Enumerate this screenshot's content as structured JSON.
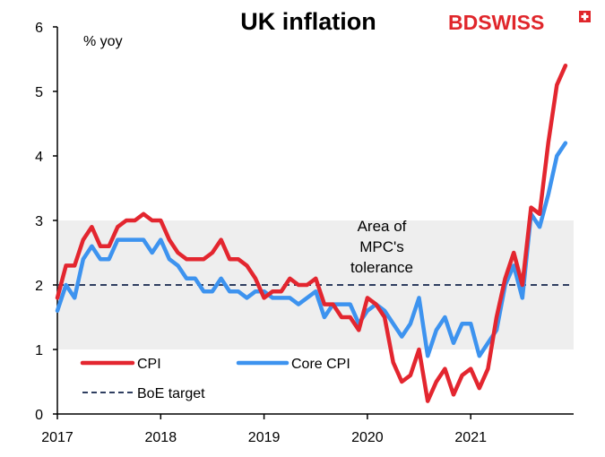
{
  "logo": {
    "text": "BDSWISS"
  },
  "chart_data": {
    "type": "line",
    "title": "UK inflation",
    "ylabel": "% yoy",
    "xlabel": "",
    "ylim": [
      0,
      6
    ],
    "yticks": [
      "0",
      "1",
      "2",
      "3",
      "4",
      "5",
      "6"
    ],
    "xticks": [
      "2017",
      "2018",
      "2019",
      "2020",
      "2021"
    ],
    "band": {
      "from": 1,
      "to": 3,
      "label_lines": [
        "Area of",
        "MPC's",
        "tolerance"
      ]
    },
    "target": {
      "name": "BoE target",
      "value": 2
    },
    "colors": {
      "cpi": "#e3262f",
      "core": "#3d93ef",
      "target": "#2f3e60",
      "band": "#eeeeee"
    },
    "start": "2017-01",
    "series": [
      {
        "name": "CPI",
        "values": [
          1.8,
          2.3,
          2.3,
          2.7,
          2.9,
          2.6,
          2.6,
          2.9,
          3.0,
          3.0,
          3.1,
          3.0,
          3.0,
          2.7,
          2.5,
          2.4,
          2.4,
          2.4,
          2.5,
          2.7,
          2.4,
          2.4,
          2.3,
          2.1,
          1.8,
          1.9,
          1.9,
          2.1,
          2.0,
          2.0,
          2.1,
          1.7,
          1.7,
          1.5,
          1.5,
          1.3,
          1.8,
          1.7,
          1.5,
          0.8,
          0.5,
          0.6,
          1.0,
          0.2,
          0.5,
          0.7,
          0.3,
          0.6,
          0.7,
          0.4,
          0.7,
          1.5,
          2.1,
          2.5,
          2.0,
          3.2,
          3.1,
          4.2,
          5.1,
          5.4
        ]
      },
      {
        "name": "Core CPI",
        "values": [
          1.6,
          2.0,
          1.8,
          2.4,
          2.6,
          2.4,
          2.4,
          2.7,
          2.7,
          2.7,
          2.7,
          2.5,
          2.7,
          2.4,
          2.3,
          2.1,
          2.1,
          1.9,
          1.9,
          2.1,
          1.9,
          1.9,
          1.8,
          1.9,
          1.9,
          1.8,
          1.8,
          1.8,
          1.7,
          1.8,
          1.9,
          1.5,
          1.7,
          1.7,
          1.7,
          1.4,
          1.6,
          1.7,
          1.6,
          1.4,
          1.2,
          1.4,
          1.8,
          0.9,
          1.3,
          1.5,
          1.1,
          1.4,
          1.4,
          0.9,
          1.1,
          1.3,
          2.0,
          2.3,
          1.8,
          3.1,
          2.9,
          3.4,
          4.0,
          4.2
        ]
      }
    ]
  }
}
